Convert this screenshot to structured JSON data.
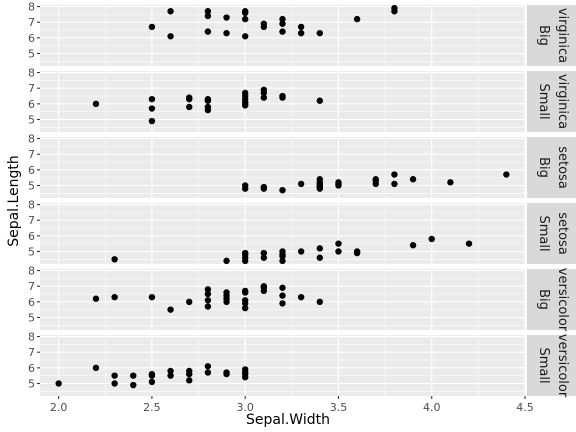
{
  "chart_data": {
    "type": "scatter",
    "xlabel": "Sepal.Width",
    "ylabel": "Sepal.Length",
    "xlim": [
      1.9,
      4.5
    ],
    "ylim": [
      4.2,
      8.1
    ],
    "x_ticks": [
      2.0,
      2.5,
      3.0,
      3.5,
      4.0,
      4.5
    ],
    "x_tick_labels": [
      "2.0",
      "2.5",
      "3.0",
      "3.5",
      "4.0",
      "4.5"
    ],
    "y_ticks": [
      5,
      6,
      7,
      8
    ],
    "y_tick_labels": [
      "5",
      "6",
      "7",
      "8"
    ],
    "grid": true,
    "point_color": "#000000",
    "panel_color": "#ebebeb",
    "strip_color": "#d9d9d9",
    "panels": [
      {
        "strip": [
          "Big",
          "virginica"
        ],
        "points": [
          [
            3.8,
            7.9
          ],
          [
            3.8,
            7.7
          ],
          [
            2.6,
            7.7
          ],
          [
            2.8,
            7.7
          ],
          [
            3.0,
            7.7
          ],
          [
            3.0,
            7.6
          ],
          [
            2.8,
            7.4
          ],
          [
            2.9,
            7.3
          ],
          [
            3.0,
            7.2
          ],
          [
            3.2,
            7.2
          ],
          [
            3.6,
            7.2
          ],
          [
            3.1,
            6.9
          ],
          [
            3.2,
            6.9
          ],
          [
            3.1,
            6.7
          ],
          [
            3.3,
            6.7
          ],
          [
            2.5,
            6.7
          ],
          [
            2.8,
            6.4
          ],
          [
            3.2,
            6.4
          ],
          [
            2.9,
            6.3
          ],
          [
            3.3,
            6.3
          ],
          [
            3.4,
            6.3
          ],
          [
            2.6,
            6.1
          ],
          [
            3.0,
            6.1
          ]
        ]
      },
      {
        "strip": [
          "Small",
          "virginica"
        ],
        "points": [
          [
            3.1,
            6.9
          ],
          [
            3.1,
            6.7
          ],
          [
            3.0,
            6.7
          ],
          [
            3.0,
            6.5
          ],
          [
            3.2,
            6.5
          ],
          [
            3.2,
            6.4
          ],
          [
            2.7,
            6.4
          ],
          [
            3.1,
            6.4
          ],
          [
            3.0,
            6.3
          ],
          [
            2.5,
            6.3
          ],
          [
            2.8,
            6.3
          ],
          [
            2.7,
            6.3
          ],
          [
            3.4,
            6.2
          ],
          [
            2.8,
            6.2
          ],
          [
            3.0,
            6.1
          ],
          [
            2.2,
            6.0
          ],
          [
            3.0,
            6.0
          ],
          [
            3.0,
            5.9
          ],
          [
            2.7,
            5.8
          ],
          [
            2.8,
            5.8
          ],
          [
            2.5,
            5.7
          ],
          [
            2.8,
            5.6
          ],
          [
            2.5,
            4.9
          ]
        ]
      },
      {
        "strip": [
          "Big",
          "setosa"
        ],
        "points": [
          [
            4.4,
            5.7
          ],
          [
            3.8,
            5.7
          ],
          [
            3.9,
            5.4
          ],
          [
            3.7,
            5.4
          ],
          [
            3.4,
            5.4
          ],
          [
            3.7,
            5.3
          ],
          [
            3.5,
            5.2
          ],
          [
            3.4,
            5.2
          ],
          [
            4.1,
            5.2
          ],
          [
            3.5,
            5.1
          ],
          [
            3.8,
            5.1
          ],
          [
            3.7,
            5.1
          ],
          [
            3.4,
            5.1
          ],
          [
            3.3,
            5.1
          ],
          [
            3.0,
            5.0
          ],
          [
            3.4,
            5.0
          ],
          [
            3.5,
            5.0
          ],
          [
            3.2,
            4.7
          ],
          [
            3.1,
            4.8
          ],
          [
            3.4,
            4.8
          ],
          [
            3.0,
            4.8
          ],
          [
            3.1,
            4.9
          ],
          [
            3.4,
            4.9
          ]
        ]
      },
      {
        "strip": [
          "Small",
          "setosa"
        ],
        "points": [
          [
            4.0,
            5.8
          ],
          [
            4.2,
            5.5
          ],
          [
            3.5,
            5.5
          ],
          [
            3.4,
            5.2
          ],
          [
            3.6,
            5.0
          ],
          [
            3.5,
            5.0
          ],
          [
            3.2,
            5.0
          ],
          [
            3.6,
            4.9
          ],
          [
            3.9,
            5.4
          ],
          [
            3.3,
            5.0
          ],
          [
            3.0,
            4.9
          ],
          [
            3.1,
            4.9
          ],
          [
            3.2,
            4.8
          ],
          [
            3.0,
            4.8
          ],
          [
            2.9,
            4.4
          ],
          [
            3.0,
            4.4
          ],
          [
            3.2,
            4.4
          ],
          [
            2.3,
            4.5
          ],
          [
            3.1,
            4.6
          ],
          [
            3.4,
            4.6
          ],
          [
            3.2,
            4.7
          ],
          [
            3.0,
            4.6
          ]
        ]
      },
      {
        "strip": [
          "Big",
          "versicolor"
        ],
        "points": [
          [
            3.1,
            7.0
          ],
          [
            3.2,
            6.9
          ],
          [
            3.1,
            6.9
          ],
          [
            2.8,
            6.8
          ],
          [
            3.0,
            6.7
          ],
          [
            3.1,
            6.7
          ],
          [
            3.0,
            6.6
          ],
          [
            2.9,
            6.6
          ],
          [
            2.8,
            6.5
          ],
          [
            3.2,
            6.4
          ],
          [
            2.9,
            6.4
          ],
          [
            2.2,
            6.2
          ],
          [
            2.3,
            6.3
          ],
          [
            2.5,
            6.3
          ],
          [
            3.3,
            6.3
          ],
          [
            2.9,
            6.2
          ],
          [
            2.8,
            6.1
          ],
          [
            3.0,
            6.1
          ],
          [
            2.7,
            6.0
          ],
          [
            2.9,
            6.0
          ],
          [
            3.4,
            6.0
          ],
          [
            2.6,
            5.5
          ],
          [
            3.0,
            5.6
          ],
          [
            2.8,
            5.7
          ],
          [
            3.0,
            5.9
          ],
          [
            3.2,
            5.9
          ]
        ]
      },
      {
        "strip": [
          "Small",
          "versicolor"
        ],
        "points": [
          [
            2.0,
            5.0
          ],
          [
            2.2,
            6.0
          ],
          [
            2.3,
            5.5
          ],
          [
            2.3,
            5.0
          ],
          [
            2.4,
            5.5
          ],
          [
            2.4,
            4.9
          ],
          [
            2.5,
            5.5
          ],
          [
            2.5,
            5.6
          ],
          [
            2.6,
            5.5
          ],
          [
            2.6,
            5.8
          ],
          [
            2.7,
            5.6
          ],
          [
            2.7,
            5.8
          ],
          [
            2.7,
            5.2
          ],
          [
            2.8,
            5.7
          ],
          [
            2.8,
            6.1
          ],
          [
            2.9,
            5.7
          ],
          [
            2.9,
            5.6
          ],
          [
            3.0,
            5.6
          ],
          [
            3.0,
            5.7
          ],
          [
            3.0,
            5.9
          ],
          [
            2.5,
            5.1
          ],
          [
            3.0,
            5.4
          ]
        ]
      }
    ]
  }
}
